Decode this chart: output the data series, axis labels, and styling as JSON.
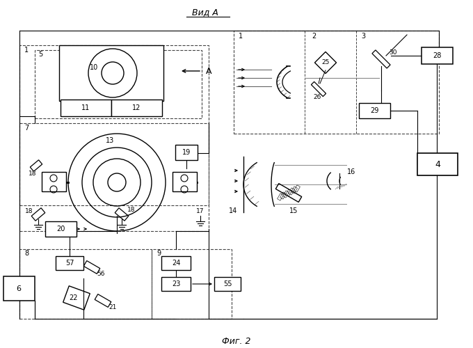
{
  "title_top": "Вид А",
  "title_bottom": "Фиг. 2",
  "bg_color": "#ffffff",
  "line_color": "#000000",
  "dashed_color": "#444444",
  "figsize": [
    6.8,
    5.0
  ],
  "dpi": 100
}
